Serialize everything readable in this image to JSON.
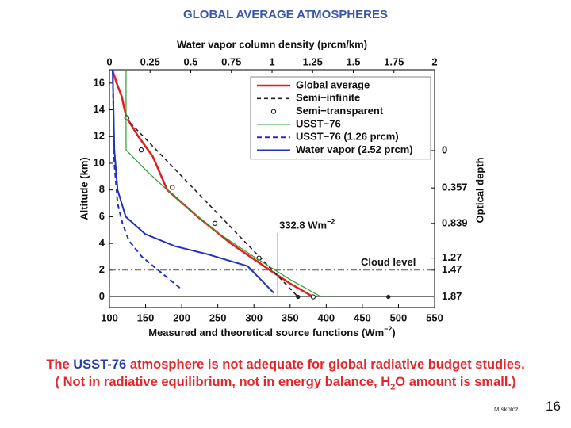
{
  "slide": {
    "title": "GLOBAL AVERAGE ATMOSPHERES",
    "caption": {
      "line1": [
        "The",
        "USST-76",
        "atmosphere is not adequate for global radiative budget studies."
      ],
      "line2": [
        "( Not in radiative equilibrium, not in energy balance, H",
        "2",
        "O amount is small.)"
      ]
    },
    "footer": {
      "author": "Miskolczi",
      "page": 16
    }
  },
  "chart_data": {
    "type": "line",
    "x2label": "Water vapor column density (prcm/km)",
    "xlabel": [
      "Measured and theoretical source functions (Wm",
      "−2",
      ")"
    ],
    "ylabel": "Altitude (km)",
    "y2label": "Optical depth",
    "xlim": [
      100,
      550
    ],
    "xticks": [
      100,
      150,
      200,
      250,
      300,
      350,
      400,
      450,
      500,
      550
    ],
    "x2lim": [
      0,
      2
    ],
    "x2ticks": [
      0,
      0.25,
      0.5,
      0.75,
      1,
      1.25,
      1.5,
      1.75,
      2
    ],
    "ylim": [
      -0.8,
      17
    ],
    "yticks": [
      0,
      2,
      4,
      6,
      8,
      10,
      12,
      14,
      16
    ],
    "optical_depth_marks": [
      {
        "tau": 0,
        "altitude": 10.95
      },
      {
        "tau": 0.357,
        "altitude": 8.15
      },
      {
        "tau": 0.839,
        "altitude": 5.5
      },
      {
        "tau": 1.27,
        "altitude": 2.9
      },
      {
        "tau": 1.47,
        "altitude": 2.0
      },
      {
        "tau": 1.87,
        "altitude": 0
      }
    ],
    "series": [
      {
        "name": "Global average",
        "color": "#e02020",
        "width": 2.5,
        "dash": "none",
        "marker": "none",
        "axis": "x",
        "x": [
          104,
          110,
          117,
          121,
          124,
          140,
          160,
          180,
          222,
          268,
          295,
          322,
          350,
          382
        ],
        "y": [
          17,
          16,
          15,
          14,
          13.4,
          12,
          10.5,
          8,
          6,
          4,
          3,
          2,
          1,
          0
        ]
      },
      {
        "name": "Semi−infinite",
        "color": "#222222",
        "width": 1.6,
        "dash": "5,4",
        "marker": "none",
        "axis": "x",
        "x": [
          122,
          361
        ],
        "y": [
          13.4,
          0
        ],
        "point_markers": {
          "x": [
            361,
            486
          ],
          "y": [
            0,
            0
          ]
        }
      },
      {
        "name": "Semi−transparent",
        "color": "#222222",
        "width": 1.2,
        "dash": "none",
        "marker": "circle",
        "line": false,
        "axis": "x",
        "x": [
          124,
          144,
          187,
          246,
          307,
          382
        ],
        "y": [
          13.4,
          11,
          8.2,
          5.5,
          2.9,
          0
        ]
      },
      {
        "name": "USST−76",
        "color": "#2ca02c",
        "width": 1.2,
        "dash": "none",
        "marker": "none",
        "axis": "x",
        "x": [
          123,
          123,
          150,
          200,
          250,
          300,
          350,
          393
        ],
        "y": [
          17,
          11,
          9.5,
          7,
          4.8,
          3,
          1.3,
          0
        ]
      },
      {
        "name": "USST−76 (1.26 prcm)",
        "color": "#2030c0",
        "width": 2,
        "dash": "6,4",
        "marker": "none",
        "axis": "x2",
        "x": [
          0.02,
          0.03,
          0.05,
          0.08,
          0.12,
          0.2,
          0.3,
          0.44
        ],
        "y": [
          17,
          10,
          7,
          5.5,
          4.2,
          3,
          2,
          0.6
        ]
      },
      {
        "name": "Water vapor (2.52 prcm)",
        "color": "#2030c0",
        "width": 2,
        "dash": "none",
        "marker": "none",
        "axis": "x2",
        "x": [
          0.02,
          0.03,
          0.05,
          0.1,
          0.22,
          0.4,
          0.6,
          0.85,
          1.01
        ],
        "y": [
          17,
          11,
          8,
          6,
          4.7,
          3.8,
          3.2,
          2.3,
          0.3
        ]
      }
    ],
    "reference_lines": {
      "flux": {
        "x": 332.8,
        "top": 4.8,
        "label": "332.8 Wm",
        "sup": "−2"
      },
      "cloud": {
        "y": 2,
        "label": "Cloud level"
      },
      "surface": {
        "y": 0
      }
    },
    "legend": "upper right"
  }
}
